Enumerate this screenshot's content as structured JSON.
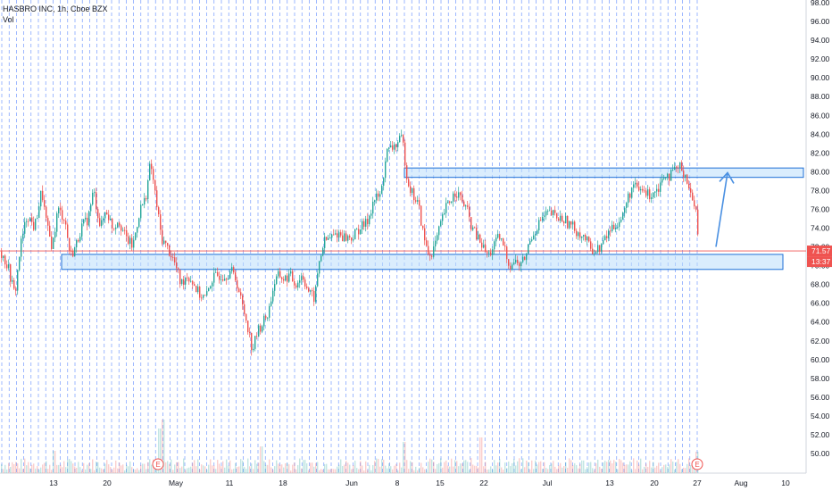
{
  "header": {
    "symbol_line": "HASBRO INC, 1h, Cboe BZX",
    "volume_label": "Vol"
  },
  "price_badge": {
    "price": "71.57",
    "countdown": "13:37",
    "color": "#ef5350"
  },
  "colors": {
    "up": "#26a69a",
    "down": "#ef5350",
    "zone_fill": "#bbdefb",
    "zone_stroke": "#1e6fd6",
    "session_line": "#2962ff",
    "arrow": "#4a90e2"
  },
  "earnings_markers": [
    {
      "label": "E",
      "date": "Apr 28"
    },
    {
      "label": "E",
      "date": "Jul 27"
    }
  ],
  "chart_data": {
    "type": "candlestick",
    "ylim": [
      50,
      98
    ],
    "y_ticks": [
      "98.00",
      "96.00",
      "94.00",
      "92.00",
      "90.00",
      "88.00",
      "86.00",
      "84.00",
      "82.00",
      "80.00",
      "78.00",
      "76.00",
      "74.00",
      "72.00",
      "70.00",
      "68.00",
      "66.00",
      "64.00",
      "62.00",
      "60.00",
      "58.00",
      "56.00",
      "54.00",
      "52.00",
      "50.00"
    ],
    "x_ticks": [
      "13",
      "20",
      "May",
      "11",
      "18",
      "Jun",
      "8",
      "15",
      "22",
      "Jul",
      "13",
      "20",
      "27",
      "Aug",
      "10"
    ],
    "current_price": 71.57,
    "zones": [
      {
        "label": "resistance",
        "from_price": 79.4,
        "to_price": 80.4
      },
      {
        "label": "support",
        "from_price": 69.6,
        "to_price": 71.2
      }
    ],
    "projection": {
      "from_price": 72.0,
      "to_price": 79.9
    },
    "price_path": [
      [
        0,
        71.5
      ],
      [
        8,
        70
      ],
      [
        16,
        66.8
      ],
      [
        22,
        72
      ],
      [
        30,
        75.5
      ],
      [
        38,
        74
      ],
      [
        46,
        78
      ],
      [
        52,
        74
      ],
      [
        58,
        72
      ],
      [
        64,
        76
      ],
      [
        72,
        75
      ],
      [
        78,
        71
      ],
      [
        84,
        72
      ],
      [
        90,
        74
      ],
      [
        98,
        75
      ],
      [
        104,
        78
      ],
      [
        112,
        74
      ],
      [
        118,
        76
      ],
      [
        126,
        74
      ],
      [
        132,
        75
      ],
      [
        140,
        73
      ],
      [
        148,
        72
      ],
      [
        156,
        76
      ],
      [
        162,
        77
      ],
      [
        168,
        81
      ],
      [
        174,
        77
      ],
      [
        180,
        73
      ],
      [
        186,
        72
      ],
      [
        192,
        71
      ],
      [
        196,
        70
      ],
      [
        202,
        68
      ],
      [
        208,
        69
      ],
      [
        214,
        68.5
      ],
      [
        222,
        67
      ],
      [
        230,
        66.5
      ],
      [
        236,
        68.5
      ],
      [
        244,
        69
      ],
      [
        252,
        69
      ],
      [
        258,
        69.5
      ],
      [
        264,
        68.5
      ],
      [
        270,
        66
      ],
      [
        276,
        64
      ],
      [
        282,
        61
      ],
      [
        288,
        63
      ],
      [
        294,
        64
      ],
      [
        300,
        65
      ],
      [
        306,
        68
      ],
      [
        312,
        69
      ],
      [
        318,
        68.5
      ],
      [
        324,
        69
      ],
      [
        330,
        68
      ],
      [
        338,
        69
      ],
      [
        346,
        67
      ],
      [
        352,
        66.5
      ],
      [
        356,
        70
      ],
      [
        362,
        72.5
      ],
      [
        370,
        73
      ],
      [
        378,
        73.5
      ],
      [
        386,
        73
      ],
      [
        394,
        73
      ],
      [
        402,
        74
      ],
      [
        410,
        74.5
      ],
      [
        418,
        77
      ],
      [
        426,
        77.5
      ],
      [
        432,
        82
      ],
      [
        438,
        82.5
      ],
      [
        444,
        83
      ],
      [
        450,
        83.5
      ],
      [
        456,
        79
      ],
      [
        462,
        77.5
      ],
      [
        468,
        76.5
      ],
      [
        474,
        73
      ],
      [
        480,
        71
      ],
      [
        486,
        72
      ],
      [
        492,
        74
      ],
      [
        498,
        76
      ],
      [
        504,
        77
      ],
      [
        510,
        78
      ],
      [
        516,
        77
      ],
      [
        522,
        76
      ],
      [
        528,
        74
      ],
      [
        534,
        73
      ],
      [
        540,
        72
      ],
      [
        546,
        71
      ],
      [
        552,
        72
      ],
      [
        558,
        73
      ],
      [
        564,
        72
      ],
      [
        570,
        70
      ],
      [
        576,
        70.5
      ],
      [
        582,
        70
      ],
      [
        588,
        71
      ],
      [
        594,
        73
      ],
      [
        600,
        74
      ],
      [
        606,
        75
      ],
      [
        612,
        75.5
      ],
      [
        618,
        75.5
      ],
      [
        624,
        75
      ],
      [
        630,
        75
      ],
      [
        636,
        74.5
      ],
      [
        642,
        74
      ],
      [
        648,
        73.5
      ],
      [
        654,
        73
      ],
      [
        660,
        72
      ],
      [
        666,
        71.5
      ],
      [
        672,
        72
      ],
      [
        678,
        73
      ],
      [
        684,
        74
      ],
      [
        690,
        74.5
      ],
      [
        696,
        75
      ],
      [
        702,
        77
      ],
      [
        708,
        78.5
      ],
      [
        714,
        78
      ],
      [
        720,
        78
      ],
      [
        726,
        77.5
      ],
      [
        732,
        78
      ],
      [
        738,
        78.5
      ],
      [
        744,
        80
      ],
      [
        750,
        79.5
      ],
      [
        756,
        80.2
      ],
      [
        762,
        80.5
      ],
      [
        768,
        79.5
      ],
      [
        774,
        77
      ],
      [
        779,
        76.5
      ],
      [
        782,
        71.5
      ]
    ],
    "volume_spikes": [
      [
        60,
        15
      ],
      [
        178,
        40
      ],
      [
        182,
        50
      ],
      [
        292,
        20
      ],
      [
        452,
        25
      ],
      [
        538,
        30
      ],
      [
        780,
        14
      ]
    ]
  }
}
